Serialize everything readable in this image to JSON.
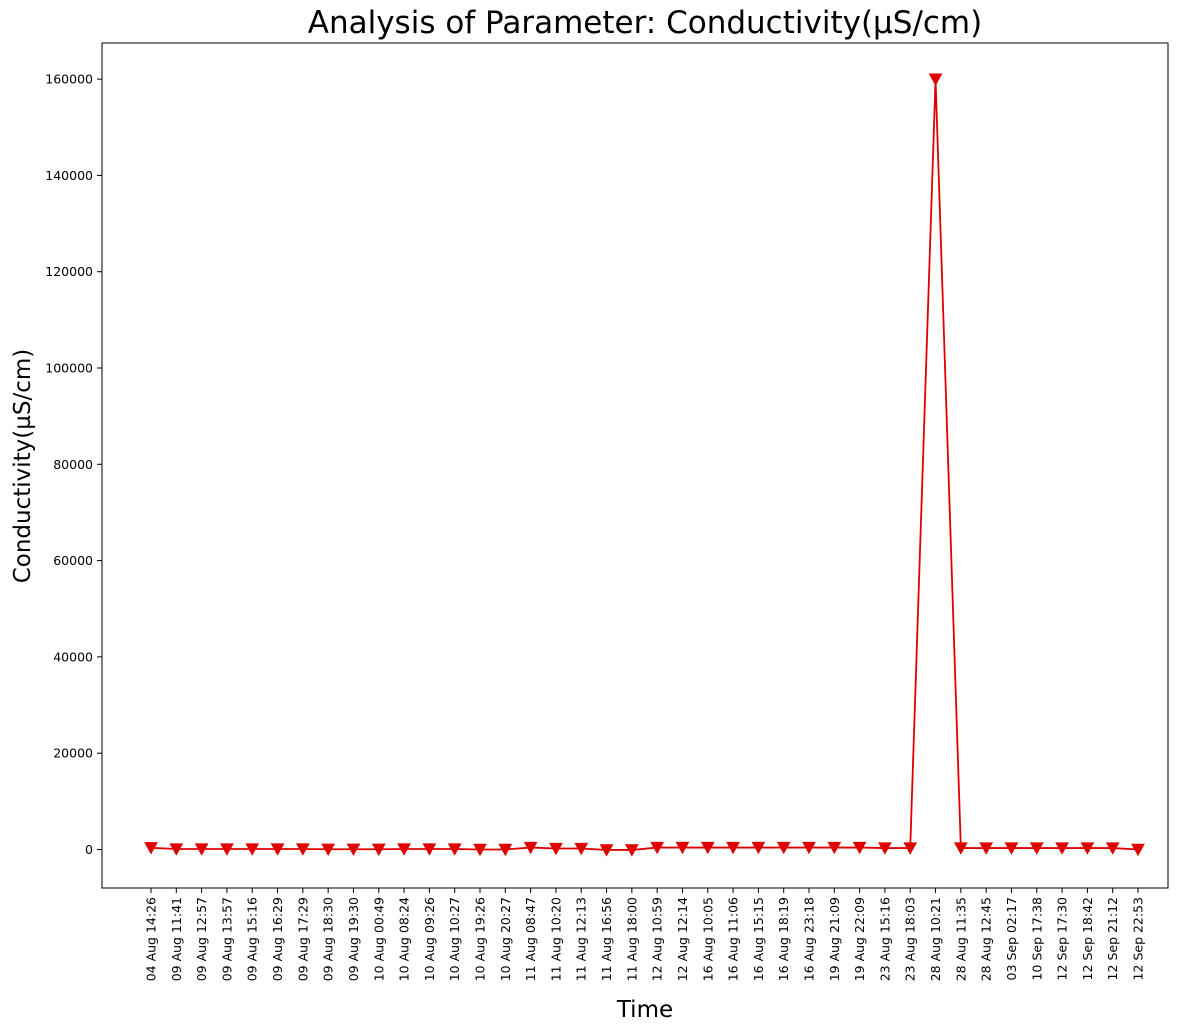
{
  "chart_data": {
    "type": "line",
    "title": "Analysis of Parameter: Conductivity(µS/cm)",
    "xlabel": "Time",
    "ylabel": "Conductivity(µS/cm)",
    "ylim": [
      -8000,
      167500
    ],
    "yticks": [
      0,
      20000,
      40000,
      60000,
      80000,
      100000,
      120000,
      140000,
      160000
    ],
    "ytick_labels": [
      "0",
      "20000",
      "40000",
      "60000",
      "80000",
      "100000",
      "120000",
      "140000",
      "160000"
    ],
    "grid": false,
    "legend": "none",
    "marker": "triangle-down",
    "color": "#e00000",
    "categories": [
      "04 Aug 14:26",
      "09 Aug 11:41",
      "09 Aug 12:57",
      "09 Aug 13:57",
      "09 Aug 15:16",
      "09 Aug 16:29",
      "09 Aug 17:29",
      "09 Aug 18:30",
      "09 Aug 19:30",
      "10 Aug 00:49",
      "10 Aug 08:24",
      "10 Aug 09:26",
      "10 Aug 10:27",
      "10 Aug 19:26",
      "10 Aug 20:27",
      "11 Aug 08:47",
      "11 Aug 10:20",
      "11 Aug 12:13",
      "11 Aug 16:56",
      "11 Aug 18:00",
      "12 Aug 10:59",
      "12 Aug 12:14",
      "16 Aug 10:05",
      "16 Aug 11:06",
      "16 Aug 15:15",
      "16 Aug 18:19",
      "16 Aug 23:18",
      "19 Aug 21:09",
      "19 Aug 22:09",
      "23 Aug 15:16",
      "23 Aug 18:03",
      "28 Aug 10:21",
      "28 Aug 11:35",
      "28 Aug 12:45",
      "03 Sep 02:17",
      "10 Sep 17:38",
      "12 Sep 17:30",
      "12 Sep 18:42",
      "12 Sep 21:12",
      "12 Sep 22:53"
    ],
    "values": [
      350,
      100,
      100,
      100,
      100,
      100,
      100,
      50,
      50,
      50,
      100,
      100,
      100,
      0,
      0,
      400,
      200,
      200,
      -100,
      -100,
      400,
      400,
      400,
      400,
      400,
      400,
      400,
      400,
      400,
      300,
      300,
      160000,
      300,
      300,
      300,
      300,
      300,
      300,
      300,
      0
    ]
  }
}
